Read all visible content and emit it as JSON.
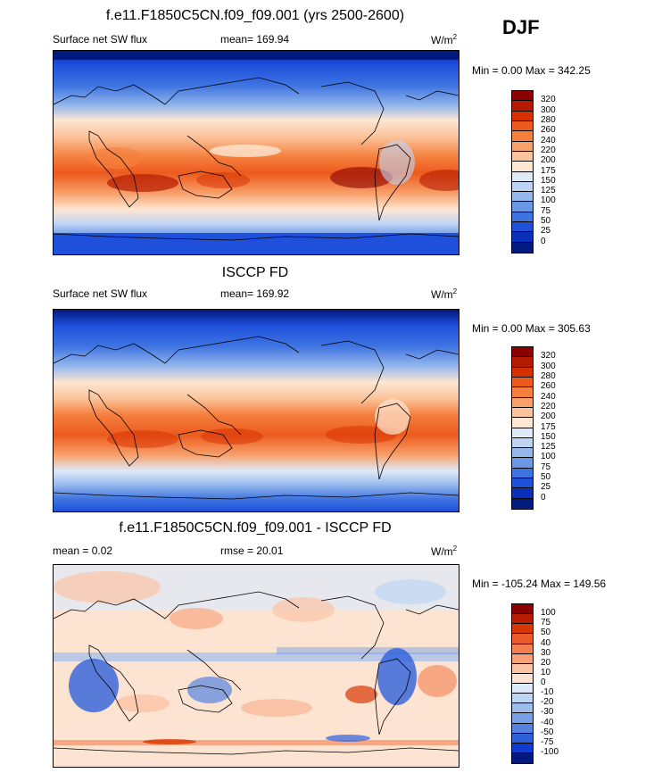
{
  "season": "DJF",
  "panels": [
    {
      "title": "f.e11.F1850C5CN.f09_f09.001 (yrs 2500-2600)",
      "left_label": "Surface net SW flux",
      "stat_label": "mean=",
      "stat_value": "169.94",
      "unit": "W/m",
      "unit_exp": "2",
      "range_text": "Min =   0.00 Max = 342.25",
      "kind": "abs",
      "colorbar_ticks": [
        "320",
        "300",
        "280",
        "260",
        "240",
        "220",
        "200",
        "175",
        "150",
        "125",
        "100",
        "75",
        "50",
        "25",
        "0"
      ]
    },
    {
      "title": "ISCCP FD",
      "left_label": "Surface net SW flux",
      "stat_label": "mean=",
      "stat_value": "169.92",
      "unit": "W/m",
      "unit_exp": "2",
      "range_text": "Min =   0.00 Max = 305.63",
      "kind": "abs",
      "colorbar_ticks": [
        "320",
        "300",
        "280",
        "260",
        "240",
        "220",
        "200",
        "175",
        "150",
        "125",
        "100",
        "75",
        "50",
        "25",
        "0"
      ]
    },
    {
      "title": "f.e11.F1850C5CN.f09_f09.001 - ISCCP FD",
      "left_label": "mean =   0.02",
      "stat_label": "rmse =",
      "stat_value": "20.01",
      "unit": "W/m",
      "unit_exp": "2",
      "range_text": "Min = -105.24 Max = 149.56",
      "kind": "diff",
      "colorbar_ticks": [
        "100",
        "75",
        "50",
        "40",
        "30",
        "20",
        "10",
        "0",
        "-10",
        "-20",
        "-30",
        "-40",
        "-50",
        "-75",
        "-100"
      ]
    }
  ],
  "colors": {
    "abs": [
      "#8b0000",
      "#b51a00",
      "#d73000",
      "#ec5a1e",
      "#f5803e",
      "#f8a06a",
      "#fbc49c",
      "#fde6d2",
      "#dfeaf9",
      "#bfd4f4",
      "#94b7ec",
      "#6a98e6",
      "#3e74e2",
      "#1e50dc",
      "#0a2fb8",
      "#021a80"
    ],
    "diff": [
      "#8b0000",
      "#b81c00",
      "#d83600",
      "#ea5a2a",
      "#f47e50",
      "#f8a07a",
      "#fbc4a6",
      "#fde4d2",
      "#ddeaf9",
      "#bed5f3",
      "#9cbcec",
      "#7aa1e6",
      "#5584e0",
      "#2e60dc",
      "#0e3cd0",
      "#021a80"
    ]
  }
}
